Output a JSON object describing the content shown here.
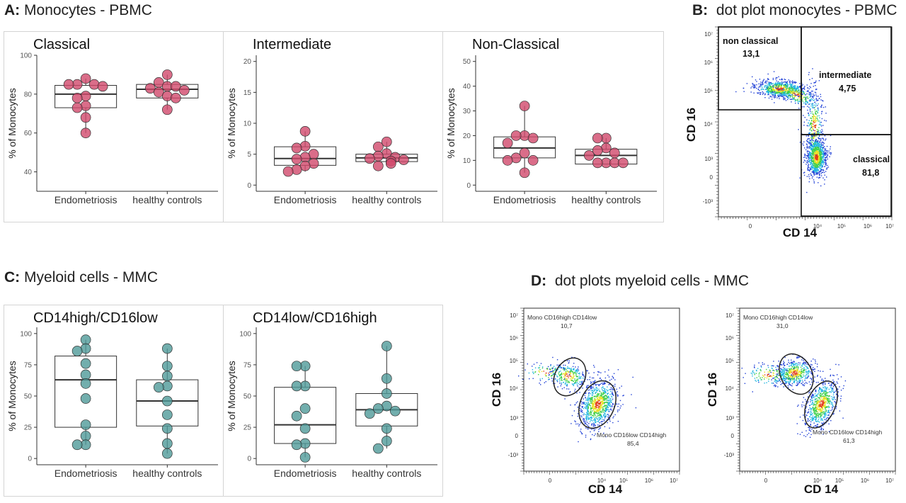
{
  "panels": {
    "A": {
      "letter": "A:",
      "title": "Monocytes - PBMC"
    },
    "B": {
      "letter": "B:",
      "title": "dot plot monocytes - PBMC"
    },
    "C": {
      "letter": "C:",
      "title": "Myeloid cells - MMC"
    },
    "D": {
      "letter": "D:",
      "title": "dot plots myeloid cells - MMC"
    }
  },
  "chart_data": [
    {
      "id": "A1",
      "type": "box",
      "title": "Classical",
      "ylabel": "% of Monocytes",
      "ylim": [
        30,
        100
      ],
      "yticks": [
        40,
        60,
        80,
        100
      ],
      "categories": [
        "Endometriosis",
        "healthy controls"
      ],
      "color": "#d1496b",
      "boxes": [
        {
          "q1": 73,
          "median": 80,
          "q3": 84.5,
          "min": 60,
          "max": 88
        },
        {
          "q1": 78,
          "median": 82.5,
          "q3": 85,
          "min": 72,
          "max": 90
        }
      ],
      "points": [
        [
          88,
          85,
          85,
          85,
          84,
          79,
          78,
          74,
          73,
          68,
          60
        ],
        [
          90,
          86,
          84,
          84,
          83,
          82,
          81,
          79,
          78,
          72
        ]
      ]
    },
    {
      "id": "A2",
      "type": "box",
      "title": "Intermediate",
      "ylabel": "% of Monocytes",
      "ylim": [
        -1,
        21
      ],
      "yticks": [
        0,
        5,
        10,
        15,
        20
      ],
      "categories": [
        "Endometriosis",
        "healthy controls"
      ],
      "color": "#d1496b",
      "boxes": [
        {
          "q1": 3.2,
          "median": 4.3,
          "q3": 6.2,
          "min": 2.2,
          "max": 8.7
        },
        {
          "q1": 3.8,
          "median": 4.4,
          "q3": 5.0,
          "min": 3.1,
          "max": 7.0
        }
      ],
      "points": [
        [
          8.7,
          6.3,
          6.0,
          5.0,
          4.5,
          4.2,
          3.5,
          3.1,
          2.5,
          2.2
        ],
        [
          7.0,
          6.2,
          5.1,
          4.7,
          4.5,
          4.3,
          4.1,
          3.9,
          3.5,
          3.1
        ]
      ]
    },
    {
      "id": "A3",
      "type": "box",
      "title": "Non-Classical",
      "ylabel": "% of Monocytes",
      "ylim": [
        -2.5,
        52.5
      ],
      "yticks": [
        0,
        10,
        20,
        30,
        40,
        50
      ],
      "categories": [
        "Endometriosis",
        "healthy controls"
      ],
      "color": "#d1496b",
      "boxes": [
        {
          "q1": 11,
          "median": 15,
          "q3": 19.5,
          "min": 5,
          "max": 32
        },
        {
          "q1": 8.5,
          "median": 12,
          "q3": 14.5,
          "min": 8.5,
          "max": 19
        }
      ],
      "points": [
        [
          32,
          20,
          20,
          19,
          17,
          13,
          11,
          10,
          10,
          5
        ],
        [
          19,
          19,
          15,
          14,
          13,
          12,
          9,
          9,
          9,
          9
        ]
      ]
    },
    {
      "id": "C1",
      "type": "box",
      "title": "CD14high/CD16low",
      "ylabel": "% of Monocytes",
      "ylim": [
        -5,
        105
      ],
      "yticks": [
        0,
        25,
        50,
        75,
        100
      ],
      "categories": [
        "Endometriosis",
        "healthy controls"
      ],
      "color": "#4f9a98",
      "boxes": [
        {
          "q1": 25,
          "median": 63,
          "q3": 82,
          "min": 11,
          "max": 95
        },
        {
          "q1": 26,
          "median": 46,
          "q3": 63,
          "min": 4,
          "max": 88
        }
      ],
      "points": [
        [
          95,
          88,
          86,
          76,
          67,
          60,
          48,
          27,
          18,
          11,
          11
        ],
        [
          88,
          74,
          66,
          58,
          57,
          46,
          35,
          24,
          12,
          4
        ]
      ]
    },
    {
      "id": "C2",
      "type": "box",
      "title": "CD14low/CD16high",
      "ylabel": "% of Monocytes",
      "ylim": [
        -5,
        105
      ],
      "yticks": [
        0,
        25,
        50,
        75,
        100
      ],
      "categories": [
        "Endometriosis",
        "healthy controls"
      ],
      "color": "#4f9a98",
      "boxes": [
        {
          "q1": 12,
          "median": 27,
          "q3": 57,
          "min": 1,
          "max": 74
        },
        {
          "q1": 26,
          "median": 39,
          "q3": 52,
          "min": 8,
          "max": 90
        }
      ],
      "points": [
        [
          74,
          74,
          58,
          58,
          40,
          34,
          24,
          12,
          11,
          1
        ],
        [
          90,
          64,
          52,
          42,
          40,
          38,
          36,
          24,
          14,
          8
        ]
      ]
    }
  ],
  "dotplots": {
    "xlabel": "CD 14",
    "ylabel": "CD 16",
    "xticks": [
      "0",
      "10⁴",
      "10⁵",
      "10⁶",
      "10⁷"
    ],
    "yticks": [
      "10⁷",
      "10⁶",
      "10⁵",
      "10⁴",
      "10³",
      "0",
      "-10³"
    ],
    "B": {
      "gates": [
        {
          "name": "non classical",
          "value": "13,1"
        },
        {
          "name": "intermediate",
          "value": "4,75"
        },
        {
          "name": "classical",
          "value": "81,8"
        }
      ]
    },
    "D": [
      {
        "upper_name": "Mono CD16high CD14low",
        "upper_value": "10,7",
        "lower_name": "Mono CD16low CD14high",
        "lower_value": "85,4"
      },
      {
        "upper_name": "Mono CD16high CD14low",
        "upper_value": "31,0",
        "lower_name": "Mono CD16low CD14high",
        "lower_value": "61,3"
      }
    ]
  }
}
